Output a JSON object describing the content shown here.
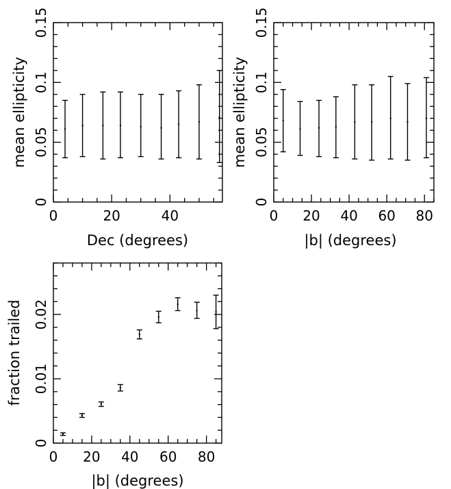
{
  "chart_data": [
    {
      "type": "errorbar",
      "xlabel": "Dec (degrees)",
      "ylabel": "mean ellipticity",
      "xlim": [
        0,
        58
      ],
      "ylim": [
        0,
        0.15
      ],
      "xticks": [
        0,
        20,
        40
      ],
      "yticks": [
        0,
        0.05,
        0.1,
        0.15
      ],
      "ytick_labels": [
        "0",
        "0.05",
        "0.1",
        "0.15"
      ],
      "points": [
        {
          "x": 4,
          "y": 0.061,
          "low": 0.037,
          "high": 0.085
        },
        {
          "x": 10,
          "y": 0.064,
          "low": 0.038,
          "high": 0.09
        },
        {
          "x": 17,
          "y": 0.064,
          "low": 0.036,
          "high": 0.092
        },
        {
          "x": 23,
          "y": 0.064,
          "low": 0.037,
          "high": 0.092
        },
        {
          "x": 30,
          "y": 0.063,
          "low": 0.038,
          "high": 0.09
        },
        {
          "x": 37,
          "y": 0.062,
          "low": 0.036,
          "high": 0.09
        },
        {
          "x": 43,
          "y": 0.065,
          "low": 0.037,
          "high": 0.093
        },
        {
          "x": 50,
          "y": 0.067,
          "low": 0.036,
          "high": 0.098
        },
        {
          "x": 57,
          "y": 0.071,
          "low": 0.033,
          "high": 0.11
        }
      ]
    },
    {
      "type": "errorbar",
      "xlabel": "|b| (degrees)",
      "ylabel": "mean ellipticity",
      "xlim": [
        0,
        85
      ],
      "ylim": [
        0,
        0.15
      ],
      "xticks": [
        0,
        20,
        40,
        60,
        80
      ],
      "yticks": [
        0,
        0.05,
        0.1,
        0.15
      ],
      "ytick_labels": [
        "0",
        "0.05",
        "0.1",
        "0.15"
      ],
      "points": [
        {
          "x": 5,
          "y": 0.068,
          "low": 0.042,
          "high": 0.094
        },
        {
          "x": 14,
          "y": 0.061,
          "low": 0.039,
          "high": 0.084
        },
        {
          "x": 24,
          "y": 0.062,
          "low": 0.038,
          "high": 0.085
        },
        {
          "x": 33,
          "y": 0.063,
          "low": 0.037,
          "high": 0.088
        },
        {
          "x": 43,
          "y": 0.067,
          "low": 0.036,
          "high": 0.098
        },
        {
          "x": 52,
          "y": 0.067,
          "low": 0.035,
          "high": 0.098
        },
        {
          "x": 62,
          "y": 0.07,
          "low": 0.036,
          "high": 0.105
        },
        {
          "x": 71,
          "y": 0.067,
          "low": 0.035,
          "high": 0.099
        },
        {
          "x": 81,
          "y": 0.07,
          "low": 0.037,
          "high": 0.104
        }
      ]
    },
    {
      "type": "errorbar",
      "xlabel": "|b| (degrees)",
      "ylabel": "fraction trailed",
      "xlim": [
        0,
        88
      ],
      "ylim": [
        0,
        0.028
      ],
      "xticks": [
        0,
        20,
        40,
        60,
        80
      ],
      "yticks": [
        0,
        0.01,
        0.02
      ],
      "ytick_labels": [
        "0",
        "0.01",
        "0.02"
      ],
      "points": [
        {
          "x": 5,
          "y": 0.0014,
          "low": 0.0012,
          "high": 0.0016
        },
        {
          "x": 15,
          "y": 0.0043,
          "low": 0.004,
          "high": 0.0046
        },
        {
          "x": 25,
          "y": 0.0061,
          "low": 0.0057,
          "high": 0.0064
        },
        {
          "x": 35,
          "y": 0.0086,
          "low": 0.0081,
          "high": 0.0091
        },
        {
          "x": 45,
          "y": 0.0169,
          "low": 0.0162,
          "high": 0.0176
        },
        {
          "x": 55,
          "y": 0.0196,
          "low": 0.0187,
          "high": 0.0205
        },
        {
          "x": 65,
          "y": 0.0216,
          "low": 0.0206,
          "high": 0.0226
        },
        {
          "x": 75,
          "y": 0.0206,
          "low": 0.0194,
          "high": 0.0219
        },
        {
          "x": 85,
          "y": 0.0204,
          "low": 0.0178,
          "high": 0.023
        }
      ]
    }
  ]
}
